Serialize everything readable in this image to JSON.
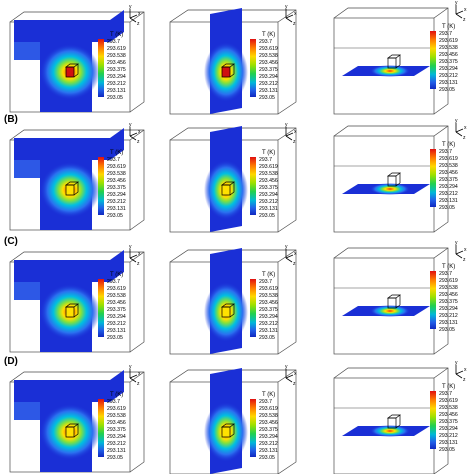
{
  "figure": {
    "row_labels": [
      "(B)",
      "(C)",
      "(D)"
    ],
    "legend": {
      "title": "T (K)",
      "values": [
        "293.7",
        "293.619",
        "293.538",
        "293.456",
        "293.375",
        "293.294",
        "293.212",
        "293.131",
        "293.05"
      ]
    },
    "axes": {
      "x": "x",
      "y": "y",
      "z": "z"
    },
    "colors": {
      "background": "#ffffff",
      "cold": "#1a2fd6",
      "edge": "#4a4a4a",
      "hot": "#d01010"
    }
  }
}
